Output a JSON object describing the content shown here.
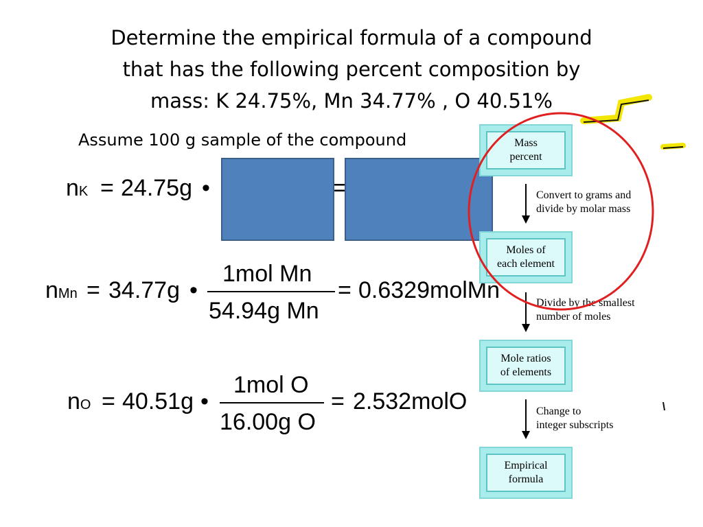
{
  "title": {
    "line1": "Determine the empirical formula of a compound",
    "line2": "that has the following percent composition by",
    "line3": "mass:  K 24.75%,   Mn 34.77%  , O 40.51%"
  },
  "subtitle": "Assume 100 g sample of the compound",
  "equations": {
    "k": {
      "n": "n",
      "sub": "K",
      "eq1": "=",
      "lhs": "24.75g",
      "dot": "•",
      "eq2": "="
    },
    "mn": {
      "n": "n",
      "sub": "Mn",
      "eq1": "=",
      "lhs": "34.77g",
      "dot": "•",
      "num": "1mol Mn",
      "den": "54.94g Mn",
      "eq2": "=",
      "result": "0.6329molMn"
    },
    "o": {
      "n": "n",
      "sub": "O",
      "eq1": "=",
      "lhs": "40.51g",
      "dot": "•",
      "num": "1mol O",
      "den": "16.00g O",
      "eq2": "=",
      "result": "2.532molO"
    }
  },
  "flowchart": {
    "boxes": [
      {
        "line1": "Mass",
        "line2": "percent"
      },
      {
        "line1": "Moles of",
        "line2": "each element"
      },
      {
        "line1": "Mole ratios",
        "line2": "of elements"
      },
      {
        "line1": "Empirical",
        "line2": "formula"
      }
    ],
    "steps": [
      {
        "line1": "Convert to grams and",
        "line2": "divide by molar mass"
      },
      {
        "line1": "Divide by the smallest",
        "line2": "number of moles"
      },
      {
        "line1": "Change to",
        "line2": "integer subscripts"
      }
    ]
  },
  "colors": {
    "blue_box": "#4f81bd",
    "circle": "#e02020",
    "highlight": "#f3e600",
    "box_fill": "#a8ecec"
  }
}
